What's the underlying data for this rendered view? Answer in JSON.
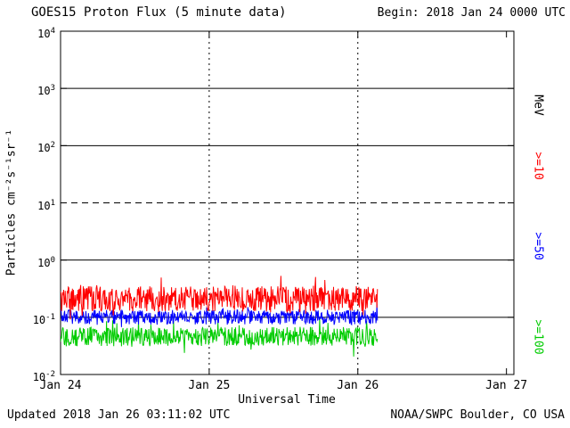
{
  "header": {
    "title": "GOES15 Proton Flux (5 minute data)",
    "begin": "Begin: 2018 Jan 24 0000 UTC"
  },
  "footer": {
    "updated": "Updated 2018 Jan 26 03:11:02 UTC",
    "attribution": "NOAA/SWPC Boulder, CO USA"
  },
  "chart_data": {
    "type": "line",
    "title": "GOES15 Proton Flux (5 minute data)",
    "xlabel": "Universal Time",
    "ylabel": "Particles cm⁻²s⁻¹sr⁻¹",
    "x_ticks": [
      {
        "label": "Jan 24",
        "day": 0
      },
      {
        "label": "Jan 25",
        "day": 1
      },
      {
        "label": "Jan 26",
        "day": 2
      },
      {
        "label": "Jan 27",
        "day": 3
      }
    ],
    "y_tick_exponents": [
      4,
      3,
      2,
      1,
      0,
      -1,
      -2
    ],
    "ylim": [
      0.01,
      10000
    ],
    "x_range_days": [
      0,
      3.05
    ],
    "grid": {
      "solid_h_exponents": [
        3,
        2,
        0,
        -1
      ],
      "dashed_h_exponents": [
        1
      ],
      "dotted_v_days": [
        1,
        2
      ]
    },
    "series": [
      {
        "name": ">=10",
        "units": "MeV",
        "color": "#ff0000",
        "baseline": 0.21,
        "log_noise_amp": 0.22,
        "spike_prob": 0.1,
        "spike_log_amp": 0.25,
        "end_day": 2.135,
        "points_per_day": 288
      },
      {
        "name": ">=50",
        "units": "MeV",
        "color": "#0000ff",
        "baseline": 0.1,
        "log_noise_amp": 0.13,
        "spike_prob": 0.06,
        "spike_log_amp": 0.18,
        "end_day": 2.135,
        "points_per_day": 288
      },
      {
        "name": ">=100",
        "units": "MeV",
        "color": "#00cc00",
        "baseline": 0.046,
        "log_noise_amp": 0.17,
        "spike_prob": 0.06,
        "spike_log_amp": 0.2,
        "end_day": 2.135,
        "points_per_day": 288
      }
    ],
    "right_labels": [
      {
        "text": "MeV",
        "color": "#000000"
      },
      {
        "text": ">=10",
        "color": "#ff0000"
      },
      {
        "text": ">=50",
        "color": "#0000ff"
      },
      {
        "text": ">=100",
        "color": "#00cc00"
      }
    ]
  }
}
